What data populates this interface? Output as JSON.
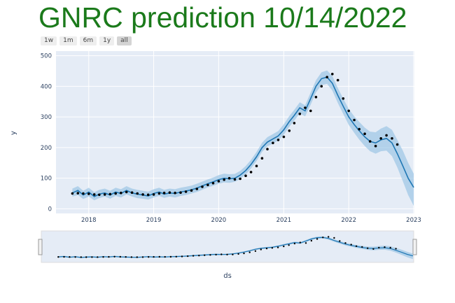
{
  "title": "GNRC prediction 10/14/2022",
  "range_selector": {
    "buttons": [
      "1w",
      "1m",
      "6m",
      "1y",
      "all"
    ],
    "active": "all"
  },
  "colors": {
    "title": "#1b7a1b",
    "plot_bg": "#e5ecf6",
    "band": "#9cc6e6",
    "forecast_line": "#1f77b4",
    "points": "#000000"
  },
  "chart_data": {
    "type": "line",
    "xlabel": "ds",
    "ylabel": "y",
    "x_ticks": [
      "2018",
      "2019",
      "2020",
      "2021",
      "2022",
      "2023"
    ],
    "y_ticks": [
      0,
      100,
      200,
      300,
      400,
      500
    ],
    "xlim": [
      "2017-07-01",
      "2023-01-05"
    ],
    "ylim": [
      -15,
      515
    ],
    "grid": true,
    "rangeslider": true,
    "series": [
      {
        "kind": "scatter",
        "x": [
          "2017-10-01",
          "2017-11-01",
          "2017-12-01",
          "2018-01-01",
          "2018-02-01",
          "2018-03-01",
          "2018-04-01",
          "2018-05-01",
          "2018-06-01",
          "2018-07-01",
          "2018-08-01",
          "2018-09-01",
          "2018-10-01",
          "2018-11-01",
          "2018-12-01",
          "2019-01-01",
          "2019-02-01",
          "2019-03-01",
          "2019-04-01",
          "2019-05-01",
          "2019-06-01",
          "2019-07-01",
          "2019-08-01",
          "2019-09-01",
          "2019-10-01",
          "2019-11-01",
          "2019-12-01",
          "2020-01-01",
          "2020-02-01",
          "2020-03-01",
          "2020-04-01",
          "2020-05-01",
          "2020-06-01",
          "2020-07-01",
          "2020-08-01",
          "2020-09-01",
          "2020-10-01",
          "2020-11-01",
          "2020-12-01",
          "2021-01-01",
          "2021-02-01",
          "2021-03-01",
          "2021-04-01",
          "2021-05-01",
          "2021-06-01",
          "2021-07-01",
          "2021-08-01",
          "2021-09-01",
          "2021-10-01",
          "2021-11-01",
          "2021-12-01",
          "2022-01-01",
          "2022-02-01",
          "2022-03-01",
          "2022-04-01",
          "2022-05-01",
          "2022-06-01",
          "2022-07-01",
          "2022-08-01",
          "2022-09-01",
          "2022-10-01"
        ],
        "y": [
          50,
          51,
          50,
          49,
          47,
          46,
          47,
          48,
          50,
          52,
          55,
          53,
          50,
          47,
          46,
          47,
          50,
          52,
          53,
          52,
          53,
          56,
          60,
          65,
          72,
          78,
          84,
          90,
          95,
          100,
          96,
          98,
          108,
          120,
          140,
          165,
          195,
          215,
          225,
          235,
          255,
          280,
          310,
          330,
          320,
          365,
          400,
          430,
          440,
          420,
          360,
          320,
          290,
          260,
          245,
          220,
          205,
          230,
          240,
          230,
          210
        ]
      },
      {
        "kind": "line",
        "x": [
          "2017-10-01",
          "2017-11-01",
          "2017-12-01",
          "2018-01-01",
          "2018-02-01",
          "2018-03-01",
          "2018-04-01",
          "2018-05-01",
          "2018-06-01",
          "2018-07-01",
          "2018-08-01",
          "2018-09-01",
          "2018-10-01",
          "2018-11-01",
          "2018-12-01",
          "2019-01-01",
          "2019-02-01",
          "2019-03-01",
          "2019-04-01",
          "2019-05-01",
          "2019-06-01",
          "2019-07-01",
          "2019-08-01",
          "2019-09-01",
          "2019-10-01",
          "2019-11-01",
          "2019-12-01",
          "2020-01-01",
          "2020-02-01",
          "2020-03-01",
          "2020-04-01",
          "2020-05-01",
          "2020-06-01",
          "2020-07-01",
          "2020-08-01",
          "2020-09-01",
          "2020-10-01",
          "2020-11-01",
          "2020-12-01",
          "2021-01-01",
          "2021-02-01",
          "2021-03-01",
          "2021-04-01",
          "2021-05-01",
          "2021-06-01",
          "2021-07-01",
          "2021-08-01",
          "2021-09-01",
          "2021-10-01",
          "2021-11-01",
          "2021-12-01",
          "2022-01-01",
          "2022-02-01",
          "2022-03-01",
          "2022-04-01",
          "2022-05-01",
          "2022-06-01",
          "2022-07-01",
          "2022-08-01",
          "2022-09-01",
          "2022-10-01",
          "2022-11-01",
          "2022-12-01",
          "2023-01-01"
        ],
        "y": [
          52,
          60,
          45,
          55,
          40,
          48,
          52,
          45,
          55,
          50,
          60,
          52,
          48,
          45,
          42,
          50,
          55,
          48,
          52,
          50,
          55,
          58,
          62,
          68,
          75,
          82,
          88,
          95,
          100,
          98,
          100,
          110,
          125,
          145,
          170,
          200,
          218,
          228,
          238,
          258,
          285,
          305,
          330,
          320,
          360,
          400,
          425,
          430,
          410,
          370,
          335,
          300,
          275,
          255,
          235,
          220,
          215,
          225,
          230,
          215,
          180,
          140,
          100,
          70
        ],
        "lower": [
          40,
          45,
          32,
          40,
          28,
          35,
          40,
          33,
          42,
          37,
          47,
          40,
          35,
          33,
          30,
          37,
          42,
          36,
          40,
          37,
          42,
          45,
          50,
          55,
          62,
          70,
          75,
          82,
          86,
          85,
          88,
          97,
          112,
          132,
          156,
          186,
          204,
          213,
          223,
          242,
          268,
          288,
          312,
          302,
          340,
          380,
          404,
          408,
          386,
          345,
          310,
          274,
          248,
          226,
          205,
          188,
          180,
          188,
          190,
          172,
          135,
          90,
          45,
          10
        ],
        "upper": [
          66,
          74,
          59,
          69,
          54,
          62,
          66,
          59,
          69,
          64,
          74,
          66,
          62,
          59,
          56,
          64,
          69,
          62,
          66,
          64,
          69,
          72,
          76,
          82,
          89,
          96,
          102,
          110,
          115,
          113,
          114,
          124,
          140,
          160,
          186,
          216,
          234,
          244,
          254,
          276,
          303,
          323,
          348,
          338,
          380,
          420,
          446,
          452,
          434,
          394,
          360,
          326,
          302,
          284,
          265,
          252,
          250,
          262,
          270,
          258,
          225,
          190,
          150,
          115
        ]
      }
    ]
  }
}
